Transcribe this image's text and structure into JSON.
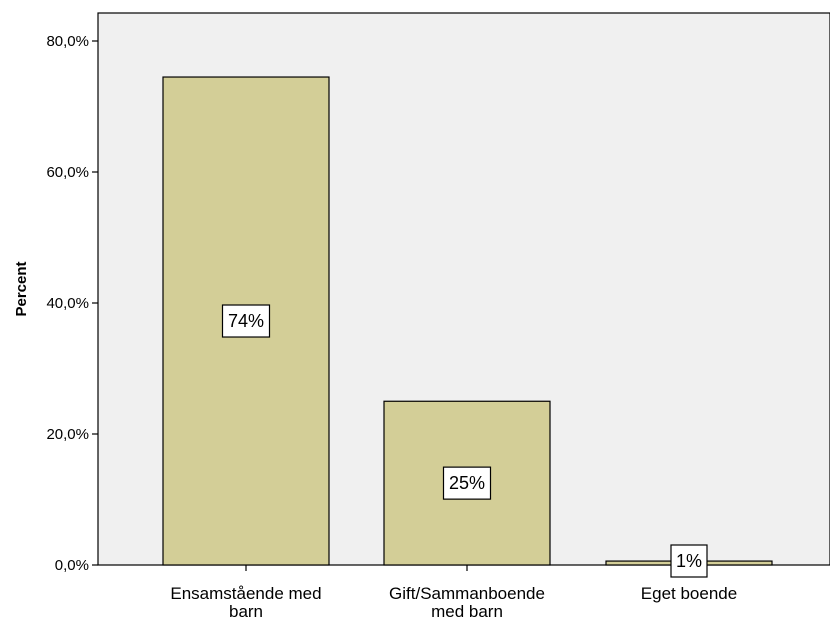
{
  "chart_data": {
    "type": "bar",
    "title": "",
    "xlabel": "",
    "ylabel": "Percent",
    "categories": [
      [
        "Ensamstående med",
        "barn"
      ],
      [
        "Gift/Sammanboende",
        "med barn"
      ],
      [
        "Eget boende"
      ]
    ],
    "values": [
      74.5,
      25.0,
      0.6
    ],
    "data_labels": [
      "74%",
      "25%",
      "1%"
    ],
    "ylim": [
      0,
      80
    ],
    "yticks": [
      0,
      20,
      40,
      60,
      80
    ],
    "ytick_labels": [
      "0,0%",
      "20,0%",
      "40,0%",
      "60,0%",
      "80,0%"
    ],
    "grid": false,
    "colors": {
      "plot_background": "#f0f0f0",
      "bar_fill": "#d3ce97",
      "bar_stroke": "#000000",
      "label_box_fill": "#ffffff"
    }
  }
}
